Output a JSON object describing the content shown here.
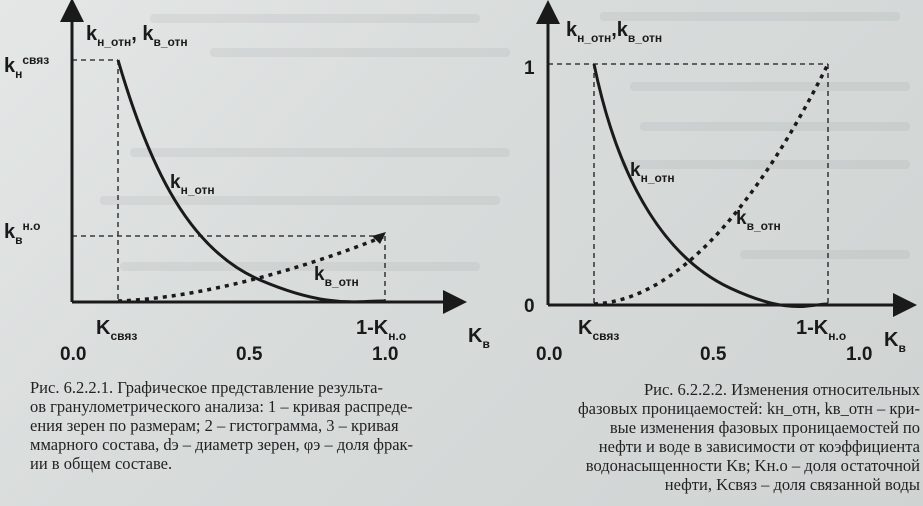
{
  "figure1": {
    "y_axis_label": {
      "main": "k",
      "sub": "н_отн",
      "sep": ", ",
      "main2": "k",
      "sub2": "в_отн"
    },
    "y_tick_top": {
      "main": "k",
      "sub": "н",
      "sup": "связ"
    },
    "y_tick_mid": {
      "main": "k",
      "sub": "в",
      "sup": "н.о"
    },
    "x_axis_label": {
      "main": "K",
      "sub": "в"
    },
    "x_tick_kconn": {
      "main": "K",
      "sub": "связ"
    },
    "x_tick_kno": {
      "main": "1-K",
      "sub": "н.о"
    },
    "x_ticks": [
      "0.0",
      "0.5",
      "1.0"
    ],
    "curve_oil_label": {
      "main": "k",
      "sub": "н_отн"
    },
    "curve_water_label": {
      "main": "k",
      "sub": "в_отн"
    },
    "caption_lines": [
      "Рис. 6.2.2.1. Графическое представление результа-",
      "ов гранулометрического анализа: 1 – кривая распреде-",
      "ения зерен по размерам; 2 – гистограмма, 3 – кривая",
      "ммарного состава, dэ – диаметр зерен, φэ – доля фрак-",
      "ии в общем составе."
    ]
  },
  "figure2": {
    "y_axis_label": {
      "main": "k",
      "sub": "н_отн",
      "sep": ",",
      "main2": "k",
      "sub2": "в_отн"
    },
    "y_ticks": [
      "1",
      "0"
    ],
    "x_axis_label": {
      "main": "K",
      "sub": "в"
    },
    "x_tick_kconn": {
      "main": "K",
      "sub": "связ"
    },
    "x_tick_kno": {
      "main": "1-K",
      "sub": "н.о"
    },
    "x_ticks": [
      "0.0",
      "0.5",
      "1.0"
    ],
    "curve_oil_label": {
      "main": "k",
      "sub": "н_отн"
    },
    "curve_water_label": {
      "main": "k",
      "sub": "в_отн"
    },
    "caption_lines": [
      "Рис. 6.2.2.2. Изменения относительных",
      "фазовых проницаемостей: kн_отн, kв_отн – кри-",
      "вые изменения фазовых проницаемостей по",
      "нефти и воде в зависимости от коэффициента",
      "водонасыщенности Kв; Kн.о – доля остаточной",
      "нефти, Kсвяз – доля связанной воды"
    ]
  }
}
